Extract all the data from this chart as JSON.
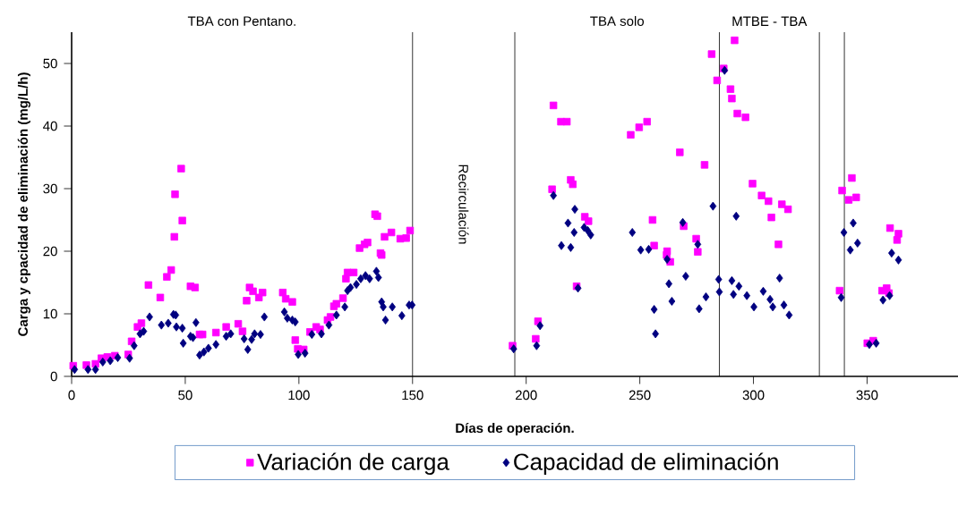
{
  "chart_data": {
    "type": "scatter",
    "xlabel": "Días de operación.",
    "ylabel": "Carga y cpacidad de eliminación (mg/L/h)",
    "xlim": [
      0,
      390
    ],
    "ylim": [
      0,
      55
    ],
    "xticks": [
      0,
      50,
      100,
      150,
      200,
      250,
      300,
      350
    ],
    "yticks": [
      0,
      10,
      20,
      30,
      40,
      50
    ],
    "grid": false,
    "legend": "bottom",
    "ref_lines": [
      {
        "axis": "x",
        "value": 150
      },
      {
        "axis": "x",
        "value": 195
      },
      {
        "axis": "x",
        "value": 285
      },
      {
        "axis": "x",
        "value": 329
      },
      {
        "axis": "x",
        "value": 340
      }
    ],
    "annotations": [
      "TBA con Pentano.",
      "Recirculación",
      "TBA solo",
      "MTBE - TBA"
    ],
    "series": [
      {
        "name": "Variación de carga",
        "color": "#ff00ff",
        "marker": "square",
        "x": [
          0.7,
          6.5,
          10.5,
          13.1,
          15.7,
          19,
          24.9,
          26.4,
          29,
          30.7,
          33.8,
          39,
          41.9,
          43.8,
          45.2,
          45.5,
          48.2,
          48.7,
          52.3,
          54.3,
          56.3,
          57.6,
          63.5,
          68,
          73.3,
          75.2,
          77,
          78.3,
          79.8,
          82.4,
          84,
          92.9,
          94.2,
          97.1,
          98.4,
          99.5,
          102.1,
          104.9,
          107.6,
          109.3,
          112.6,
          113.9,
          115.4,
          116.5,
          119.4,
          120.7,
          121.4,
          124.1,
          126.7,
          128.9,
          130.2,
          133.5,
          134.5,
          135.9,
          136.4,
          137.7,
          140.7,
          144.6,
          147.2,
          148.9,
          194,
          204.2,
          205.2,
          211.4,
          212,
          215.3,
          217.9,
          219.6,
          220.5,
          222.2,
          225.8,
          227.4,
          246,
          249.7,
          253.2,
          255.6,
          256.3,
          261.8,
          262,
          263.4,
          267.6,
          269.3,
          274.8,
          275.5,
          278.5,
          281.6,
          284,
          286.9,
          289.9,
          290.5,
          291.7,
          292.9,
          296.5,
          299.6,
          303.6,
          306.6,
          307.9,
          311,
          312.5,
          315.2,
          337.9,
          339,
          341.9,
          343.3,
          345.2,
          350.1,
          352.7,
          356.6,
          358.6,
          359.6,
          360.1,
          363.2,
          363.8
        ],
        "values": [
          1.7,
          1.8,
          2.0,
          2.9,
          3.1,
          3.3,
          3.5,
          5.6,
          7.9,
          8.5,
          14.6,
          12.6,
          15.9,
          17.0,
          22.3,
          29.1,
          33.2,
          24.9,
          14.4,
          14.2,
          6.7,
          6.7,
          7.0,
          7.9,
          8.4,
          7.2,
          12.1,
          14.2,
          13.6,
          12.6,
          13.4,
          13.4,
          12.4,
          11.9,
          5.8,
          4.4,
          4.3,
          7.1,
          7.9,
          7.5,
          9.0,
          9.5,
          11.2,
          11.6,
          12.5,
          15.6,
          16.6,
          16.6,
          20.5,
          21.1,
          21.4,
          25.9,
          25.6,
          19.7,
          19.4,
          22.3,
          23.0,
          22.0,
          22.1,
          23.3,
          4.9,
          6.0,
          8.8,
          29.9,
          43.3,
          40.7,
          40.7,
          31.4,
          30.7,
          14.4,
          25.5,
          24.8,
          38.6,
          39.8,
          40.7,
          25.0,
          20.9,
          19.4,
          20.0,
          18.3,
          35.8,
          24.0,
          22.0,
          19.9,
          33.8,
          51.5,
          47.3,
          49.2,
          45.9,
          44.4,
          53.7,
          42.0,
          41.4,
          30.8,
          28.9,
          28.0,
          25.4,
          21.1,
          27.5,
          26.7,
          13.7,
          29.7,
          28.2,
          31.7,
          28.6,
          5.3,
          5.7,
          13.7,
          14.1,
          13.3,
          23.7,
          21.8,
          22.8
        ]
      },
      {
        "name": "Capacidad de eliminación",
        "color": "#000080",
        "marker": "diamond",
        "x": [
          1.3,
          7.2,
          10.5,
          13.7,
          17,
          20.3,
          25.5,
          27.5,
          30.1,
          31.7,
          34.3,
          39.5,
          42.5,
          44.8,
          45.8,
          46.1,
          48.7,
          49.1,
          52.3,
          53.4,
          54.7,
          56.3,
          58.2,
          60.2,
          63.5,
          68,
          70,
          75.9,
          77.5,
          79.2,
          80.5,
          83.1,
          84.8,
          93.6,
          94.9,
          97.1,
          98.4,
          99.7,
          102.7,
          105.7,
          109.9,
          113.2,
          116.5,
          120.2,
          121.4,
          122.7,
          125.3,
          127.2,
          129.3,
          131.1,
          134.1,
          135,
          136.4,
          137.1,
          138.1,
          141.1,
          145.3,
          148.5,
          149.8,
          194.5,
          204.6,
          206.1,
          212,
          215.5,
          218.4,
          219.6,
          221.1,
          221.4,
          222.8,
          225.5,
          227.1,
          228.4,
          246.7,
          250.4,
          253.9,
          256.3,
          256.9,
          262,
          262.8,
          264.1,
          268.9,
          270.2,
          275.5,
          276.1,
          279.1,
          282.2,
          284.7,
          285,
          287.3,
          290.5,
          291.2,
          292.4,
          293.6,
          297.1,
          300.2,
          304.3,
          307.3,
          308.5,
          311.5,
          313.4,
          315.7,
          338.6,
          339.8,
          342.6,
          343.9,
          345.8,
          351,
          354,
          357,
          359.9,
          360.8,
          363.8
        ],
        "values": [
          1.1,
          1.1,
          1.1,
          2.3,
          2.5,
          3.0,
          2.9,
          4.9,
          6.8,
          7.2,
          9.5,
          8.2,
          8.5,
          9.9,
          9.8,
          7.9,
          7.7,
          5.3,
          6.4,
          6.2,
          8.6,
          3.4,
          3.9,
          4.5,
          5.1,
          6.4,
          6.8,
          6.0,
          4.3,
          5.9,
          6.8,
          6.7,
          9.5,
          10.3,
          9.3,
          9.0,
          8.7,
          3.5,
          3.7,
          6.7,
          6.8,
          8.2,
          9.8,
          11.1,
          13.7,
          14.2,
          14.7,
          15.6,
          16.1,
          15.6,
          16.8,
          15.8,
          11.9,
          11.1,
          9.0,
          11.1,
          9.7,
          11.4,
          11.4,
          4.4,
          4.9,
          8.1,
          28.9,
          20.9,
          24.5,
          20.6,
          23.0,
          26.7,
          14.1,
          23.8,
          23.3,
          22.6,
          23.0,
          20.2,
          20.3,
          10.7,
          6.8,
          18.7,
          14.8,
          12.0,
          24.6,
          16.0,
          21.1,
          10.8,
          12.7,
          27.2,
          15.5,
          13.5,
          48.9,
          15.3,
          13.1,
          25.6,
          14.4,
          12.9,
          11.1,
          13.6,
          12.3,
          11.1,
          15.7,
          11.4,
          9.8,
          12.6,
          23.0,
          20.2,
          24.5,
          21.3,
          5.1,
          5.3,
          12.2,
          12.9,
          19.7,
          18.6
        ]
      }
    ]
  }
}
